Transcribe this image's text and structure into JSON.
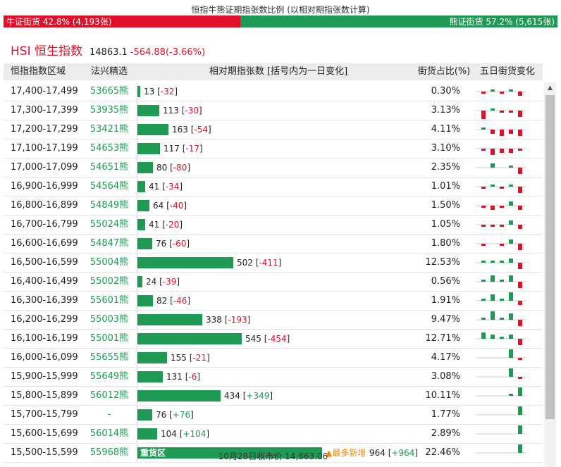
{
  "page_title": "恒指牛熊证期指张数比例 (以相对期指张数计算)",
  "ratio": {
    "bull_label": "牛证街货 42.8% (4,193张)",
    "bear_label": "熊证街货 57.2% (5,615张)",
    "bull_fraction": 0.428,
    "bull_color": "#e0102a",
    "bear_color": "#1f9a55"
  },
  "index": {
    "name": "HSI 恒生指数",
    "price": "14863.1",
    "change": "-564.88(-3.66%)"
  },
  "table": {
    "headers": {
      "range": "恒指指数区域",
      "pick": "法兴精选",
      "contracts": "相对期指张数 [括号内为一日变化]",
      "share": "街货占比(%)",
      "trend": "五日街货变化"
    },
    "max_contracts": 964,
    "rows": [
      {
        "range": "17,400-17,499",
        "code": "53665熊",
        "count": 13,
        "count_text": "13",
        "delta": "-32",
        "share": "0.30%",
        "five_day": [
          -1,
          1,
          -1,
          1,
          -2
        ]
      },
      {
        "range": "17,300-17,399",
        "code": "53935熊",
        "count": 113,
        "count_text": "113",
        "delta": "-30",
        "share": "3.13%",
        "five_day": [
          -4,
          1,
          -1,
          -1,
          -3
        ]
      },
      {
        "range": "17,200-17,299",
        "code": "53421熊",
        "count": 163,
        "count_text": "163",
        "delta": "-54",
        "share": "4.11%",
        "five_day": [
          1,
          -2,
          -3,
          -2,
          -3
        ]
      },
      {
        "range": "17,100-17,199",
        "code": "54653熊",
        "count": 117,
        "count_text": "117",
        "delta": "-17",
        "share": "3.10%",
        "five_day": [
          -1,
          -3,
          -2,
          -2,
          -1
        ]
      },
      {
        "range": "17,000-17,099",
        "code": "54651熊",
        "count": 80,
        "count_text": "80",
        "delta": "-80",
        "share": "2.35%",
        "five_day": [
          0,
          2,
          0,
          1,
          -3
        ]
      },
      {
        "range": "16,900-16,999",
        "code": "54564熊",
        "count": 41,
        "count_text": "41",
        "delta": "-34",
        "share": "1.01%",
        "five_day": [
          -1,
          1,
          -1,
          1,
          -3
        ]
      },
      {
        "range": "16,800-16,899",
        "code": "54849熊",
        "count": 64,
        "count_text": "64",
        "delta": "-40",
        "share": "1.50%",
        "five_day": [
          -1,
          -2,
          -1,
          2,
          -2
        ]
      },
      {
        "range": "16,700-16,799",
        "code": "55024熊",
        "count": 41,
        "count_text": "41",
        "delta": "-20",
        "share": "1.05%",
        "five_day": [
          -1,
          -1,
          -1,
          2,
          -2
        ]
      },
      {
        "range": "16,600-16,699",
        "code": "54847熊",
        "count": 76,
        "count_text": "76",
        "delta": "-60",
        "share": "1.80%",
        "five_day": [
          -1,
          0,
          -1,
          2,
          -3
        ]
      },
      {
        "range": "16,500-16,599",
        "code": "55004熊",
        "count": 502,
        "count_text": "502",
        "delta": "-411",
        "share": "12.53%",
        "five_day": [
          1,
          1,
          1,
          2,
          -3
        ]
      },
      {
        "range": "16,400-16,499",
        "code": "55002熊",
        "count": 24,
        "count_text": "24",
        "delta": "-39",
        "share": "0.56%",
        "five_day": [
          1,
          3,
          1,
          3,
          -3
        ]
      },
      {
        "range": "16,300-16,399",
        "code": "55601熊",
        "count": 82,
        "count_text": "82",
        "delta": "-46",
        "share": "1.91%",
        "five_day": [
          1,
          3,
          1,
          4,
          -2
        ]
      },
      {
        "range": "16,200-16,299",
        "code": "55003熊",
        "count": 338,
        "count_text": "338",
        "delta": "-193",
        "share": "9.47%",
        "five_day": [
          1,
          4,
          1,
          3,
          -3
        ]
      },
      {
        "range": "16,100-16,199",
        "code": "55001熊",
        "count": 545,
        "count_text": "545",
        "delta": "-454",
        "share": "12.71%",
        "five_day": [
          3,
          2,
          1,
          2,
          -3
        ]
      },
      {
        "range": "16,000-16,099",
        "code": "55655熊",
        "count": 155,
        "count_text": "155",
        "delta": "-21",
        "share": "4.17%",
        "five_day": [
          0,
          0,
          0,
          4,
          -1
        ]
      },
      {
        "range": "15,900-15,999",
        "code": "55649熊",
        "count": 131,
        "count_text": "131",
        "delta": "-6",
        "share": "3.08%",
        "five_day": [
          0,
          0,
          0,
          4,
          -1
        ]
      },
      {
        "range": "15,800-15,899",
        "code": "56012熊",
        "count": 434,
        "count_text": "434",
        "delta": "+349",
        "share": "10.11%",
        "five_day": [
          0,
          0,
          0,
          1,
          4
        ]
      },
      {
        "range": "15,700-15,799",
        "code": "-",
        "count": 76,
        "count_text": "76",
        "delta": "+76",
        "share": "1.77%",
        "five_day": [
          0,
          0,
          0,
          0,
          4
        ]
      },
      {
        "range": "15,600-15,699",
        "code": "56014熊",
        "count": 104,
        "count_text": "104",
        "delta": "+104",
        "share": "2.89%",
        "five_day": [
          0,
          0,
          0,
          0,
          4
        ]
      },
      {
        "range": "15,500-15,599",
        "code": "55968熊",
        "count": 964,
        "count_text": "964",
        "delta": "+964",
        "share": "22.46%",
        "five_day": [
          0,
          0,
          0,
          0,
          4
        ],
        "heavy_label": "重货区",
        "most_label": "▲最多新增"
      }
    ]
  },
  "footer": "10月28日收市价 14,863.06"
}
